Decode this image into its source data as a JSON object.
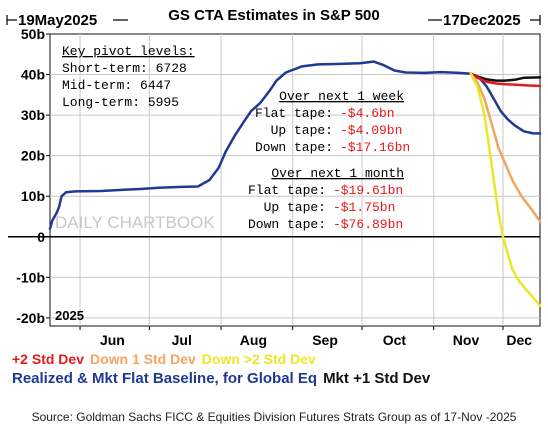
{
  "chart_data": {
    "type": "line",
    "title": "GS CTA Estimates in S&P 500",
    "start_label": "19May2025",
    "end_label": "17Dec2025",
    "year_label": "2025",
    "watermark": "DAILY CHARTBOOK",
    "ylim": [
      -22,
      50
    ],
    "y_ticks": [
      {
        "value": 50,
        "label": "50b"
      },
      {
        "value": 40,
        "label": "40b"
      },
      {
        "value": 30,
        "label": "30b"
      },
      {
        "value": 20,
        "label": "20b"
      },
      {
        "value": 10,
        "label": "10b"
      },
      {
        "value": 0,
        "label": "0"
      },
      {
        "value": -10,
        "label": "-10b"
      },
      {
        "value": -20,
        "label": "-20b"
      }
    ],
    "x_domain": [
      "2025-05-19",
      "2025-12-17"
    ],
    "x_ticks": [
      {
        "date": "2025-06-15",
        "label": "Jun"
      },
      {
        "date": "2025-07-15",
        "label": "Jul"
      },
      {
        "date": "2025-08-15",
        "label": "Aug"
      },
      {
        "date": "2025-09-15",
        "label": "Sep"
      },
      {
        "date": "2025-10-15",
        "label": "Oct"
      },
      {
        "date": "2025-11-15",
        "label": "Nov"
      },
      {
        "date": "2025-12-08",
        "label": "Dec"
      }
    ],
    "x_gridlines": [
      "2025-06-01",
      "2025-07-01",
      "2025-08-01",
      "2025-09-01",
      "2025-10-01",
      "2025-11-01",
      "2025-12-01"
    ],
    "series": [
      {
        "name": "Realized & Mkt Flat Baseline, for Global Eq",
        "color": "#1f3a93",
        "points": [
          [
            "2025-05-19",
            2
          ],
          [
            "2025-05-20",
            4
          ],
          [
            "2025-05-22",
            6
          ],
          [
            "2025-05-23",
            7.5
          ],
          [
            "2025-05-24",
            10
          ],
          [
            "2025-05-26",
            11
          ],
          [
            "2025-05-30",
            11.2
          ],
          [
            "2025-06-10",
            11.3
          ],
          [
            "2025-06-20",
            11.6
          ],
          [
            "2025-06-28",
            11.8
          ],
          [
            "2025-07-05",
            12.1
          ],
          [
            "2025-07-15",
            12.3
          ],
          [
            "2025-07-22",
            12.4
          ],
          [
            "2025-07-27",
            14
          ],
          [
            "2025-07-31",
            17
          ],
          [
            "2025-08-03",
            21
          ],
          [
            "2025-08-07",
            25
          ],
          [
            "2025-08-11",
            28.5
          ],
          [
            "2025-08-14",
            31
          ],
          [
            "2025-08-18",
            33
          ],
          [
            "2025-08-22",
            36
          ],
          [
            "2025-08-25",
            38.5
          ],
          [
            "2025-08-29",
            40.5
          ],
          [
            "2025-09-05",
            42
          ],
          [
            "2025-09-12",
            42.5
          ],
          [
            "2025-09-20",
            42.6
          ],
          [
            "2025-09-30",
            42.8
          ],
          [
            "2025-10-06",
            43.2
          ],
          [
            "2025-10-10",
            42.4
          ],
          [
            "2025-10-15",
            41
          ],
          [
            "2025-10-20",
            40.5
          ],
          [
            "2025-10-28",
            40.4
          ],
          [
            "2025-11-04",
            40.6
          ],
          [
            "2025-11-12",
            40.4
          ],
          [
            "2025-11-17",
            40.2
          ],
          [
            "2025-11-21",
            39
          ],
          [
            "2025-11-24",
            37
          ],
          [
            "2025-11-27",
            34
          ],
          [
            "2025-11-30",
            31
          ],
          [
            "2025-12-03",
            29
          ],
          [
            "2025-12-06",
            27.5
          ],
          [
            "2025-12-10",
            26
          ],
          [
            "2025-12-14",
            25.5
          ],
          [
            "2025-12-17",
            25.5
          ]
        ]
      },
      {
        "name": "Mkt +1 Std Dev",
        "color": "#111111",
        "points": [
          [
            "2025-11-17",
            40.2
          ],
          [
            "2025-11-20",
            39.5
          ],
          [
            "2025-11-24",
            38.8
          ],
          [
            "2025-11-28",
            38.5
          ],
          [
            "2025-12-02",
            38.5
          ],
          [
            "2025-12-06",
            38.7
          ],
          [
            "2025-12-10",
            39.2
          ],
          [
            "2025-12-17",
            39.3
          ]
        ]
      },
      {
        "name": "+2 Std Dev",
        "color": "#e31a1c",
        "points": [
          [
            "2025-11-17",
            40.2
          ],
          [
            "2025-11-20",
            39.2
          ],
          [
            "2025-11-24",
            38.2
          ],
          [
            "2025-11-28",
            37.8
          ],
          [
            "2025-12-02",
            37.6
          ],
          [
            "2025-12-07",
            37.5
          ],
          [
            "2025-12-12",
            37.3
          ],
          [
            "2025-12-17",
            37.2
          ]
        ]
      },
      {
        "name": "Down 1 Std Dev",
        "color": "#f4a460",
        "points": [
          [
            "2025-11-17",
            40.2
          ],
          [
            "2025-11-20",
            38
          ],
          [
            "2025-11-23",
            34
          ],
          [
            "2025-11-26",
            28
          ],
          [
            "2025-11-29",
            22
          ],
          [
            "2025-12-02",
            18
          ],
          [
            "2025-12-05",
            14
          ],
          [
            "2025-12-09",
            10
          ],
          [
            "2025-12-13",
            7
          ],
          [
            "2025-12-17",
            3.8
          ]
        ]
      },
      {
        "name": "Down >2 Std Dev",
        "color": "#e8e826",
        "points": [
          [
            "2025-11-17",
            40.2
          ],
          [
            "2025-11-20",
            37
          ],
          [
            "2025-11-23",
            30
          ],
          [
            "2025-11-25",
            22
          ],
          [
            "2025-11-27",
            14
          ],
          [
            "2025-11-29",
            6
          ],
          [
            "2025-12-01",
            0
          ],
          [
            "2025-12-03",
            -4
          ],
          [
            "2025-12-05",
            -8
          ],
          [
            "2025-12-08",
            -11
          ],
          [
            "2025-12-11",
            -13
          ],
          [
            "2025-12-14",
            -15
          ],
          [
            "2025-12-17",
            -17
          ]
        ]
      }
    ],
    "annotations": {
      "pivot": {
        "heading": "Key pivot levels:",
        "lines": [
          "Short-term: 6728",
          "Mid-term: 6447",
          "Long-term: 5995"
        ]
      },
      "week": {
        "heading": "Over next 1 week",
        "rows": [
          {
            "label": "Flat tape:",
            "value": "-$4.6bn"
          },
          {
            "label": "Up tape:",
            "value": "-$4.09bn"
          },
          {
            "label": "Down tape:",
            "value": "-$17.16bn"
          }
        ]
      },
      "month": {
        "heading": "Over next 1 month",
        "rows": [
          {
            "label": "Flat tape:",
            "value": "-$19.61bn"
          },
          {
            "label": "Up tape:",
            "value": "-$1.75bn"
          },
          {
            "label": "Down tape:",
            "value": "-$76.89bn"
          }
        ]
      }
    },
    "legend": {
      "row1": [
        {
          "text": "+2 Std Dev",
          "color": "#e31a1c"
        },
        {
          "text": "Down 1 Std Dev",
          "color": "#f4a460"
        },
        {
          "text": "Down >2 Std Dev",
          "color": "#e8e826"
        }
      ],
      "row2": [
        {
          "text": "Realized & Mkt Flat Baseline, for Global Eq",
          "color": "#1f3a93"
        },
        {
          "text": "Mkt +1 Std Dev",
          "color": "#111111"
        }
      ]
    },
    "grid": true,
    "negative_value_color": "#e31a1c"
  },
  "source": "Source: Goldman Sachs FICC & Equities Division Futures Strats Group as of 17-Nov -2025"
}
